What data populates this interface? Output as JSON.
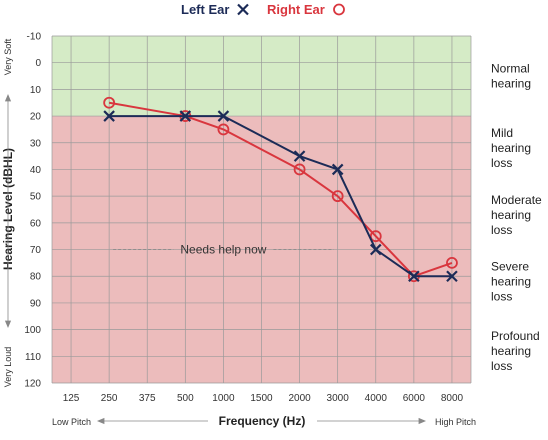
{
  "chart_data": {
    "type": "line",
    "title": "",
    "xlabel": "Frequency (Hz)",
    "ylabel": "Hearing Level (dBHL)",
    "x_scale": "log",
    "categories": [
      "125",
      "250",
      "375",
      "500",
      "1000",
      "1500",
      "2000",
      "3000",
      "4000",
      "6000",
      "8000"
    ],
    "ylim": [
      -10,
      120
    ],
    "y_ticks": [
      "-10",
      "0",
      "10",
      "20",
      "30",
      "40",
      "50",
      "60",
      "70",
      "80",
      "90",
      "100",
      "110",
      "120"
    ],
    "y_inverted": true,
    "grid": true,
    "legend_position": "top-center",
    "series": [
      {
        "name": "Left Ear",
        "marker": "x",
        "color": "#1c2b57",
        "x": [
          250,
          500,
          1000,
          2000,
          3000,
          4000,
          6000,
          8000
        ],
        "values": [
          20,
          20,
          20,
          35,
          40,
          70,
          80,
          80
        ]
      },
      {
        "name": "Right Ear",
        "marker": "o",
        "color": "#d9363e",
        "x": [
          250,
          500,
          1000,
          2000,
          3000,
          4000,
          6000,
          8000
        ],
        "values": [
          15,
          20,
          25,
          40,
          50,
          65,
          80,
          75
        ]
      }
    ],
    "bands": [
      {
        "from": -10,
        "to": 20,
        "color": "#d5ebc6"
      },
      {
        "from": 20,
        "to": 120,
        "color": "#ecbcbc"
      }
    ],
    "zone_labels": [
      {
        "lines": [
          "Normal",
          "hearing"
        ],
        "y": 5
      },
      {
        "lines": [
          "Mild",
          "hearing",
          "loss"
        ],
        "y": 32
      },
      {
        "lines": [
          "Moderate",
          "hearing",
          "loss"
        ],
        "y": 57
      },
      {
        "lines": [
          "Severe",
          "hearing",
          "loss"
        ],
        "y": 82
      },
      {
        "lines": [
          "Profound",
          "hearing",
          "loss"
        ],
        "y": 108
      }
    ],
    "annotation": {
      "text": "Needs help now",
      "x": 1000,
      "y": 70
    },
    "side_labels": {
      "top": "Very Soft",
      "bottom": "Very Loud",
      "left": "Low Pitch",
      "right": "High Pitch"
    }
  }
}
